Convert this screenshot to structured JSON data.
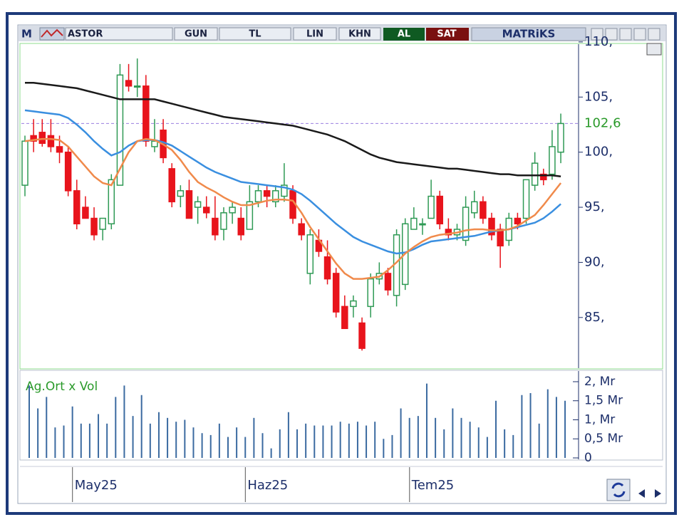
{
  "toolbar": {
    "logo": "M",
    "symbol": "ASTOR",
    "buttons": [
      "GUN",
      "TL",
      "LIN",
      "KHN"
    ],
    "buy": "AL",
    "sell": "SAT",
    "brand": "MATRiKS"
  },
  "chart_data": {
    "type": "candlestick",
    "categories": [
      null,
      null,
      null,
      null,
      null,
      null,
      "May25",
      null,
      null,
      null,
      null,
      null,
      null,
      null,
      null,
      null,
      null,
      null,
      null,
      null,
      null,
      null,
      null,
      null,
      null,
      null,
      "Haz25",
      null,
      null,
      null,
      null,
      null,
      null,
      null,
      null,
      null,
      null,
      null,
      null,
      null,
      null,
      null,
      null,
      null,
      null,
      "Tem25",
      null,
      null,
      null,
      null,
      null,
      null,
      null,
      null,
      null,
      null,
      null,
      null,
      null,
      null,
      null,
      null,
      null
    ],
    "open": [
      97,
      101.5,
      101.8,
      101.5,
      100.5,
      100,
      96.5,
      95,
      94,
      93,
      93.5,
      97,
      106.5,
      106,
      106,
      100.5,
      102,
      98.5,
      96,
      96.5,
      95,
      95,
      94,
      93,
      94.5,
      94,
      93,
      95.5,
      96.5,
      95.5,
      96,
      96.5,
      93.5,
      89,
      92,
      90.5,
      89,
      86,
      86,
      84.5,
      86,
      88.5,
      89,
      87,
      88,
      93,
      93.5,
      94,
      96,
      93,
      92.5,
      92,
      94.5,
      95.5,
      94,
      93,
      92,
      94,
      94,
      97,
      98,
      98,
      100
    ],
    "high": [
      101.5,
      103,
      103,
      103,
      101.5,
      100.5,
      97.5,
      96,
      95,
      94,
      98,
      108,
      108,
      108.5,
      107,
      103,
      103,
      99,
      97,
      97.5,
      96,
      96,
      96,
      95,
      95.5,
      95,
      97,
      97,
      97,
      97,
      99,
      97,
      94,
      93,
      93,
      92,
      89.5,
      87,
      87,
      85,
      89,
      90,
      89.5,
      93,
      94,
      95,
      94,
      97.5,
      96.5,
      94,
      93.5,
      96,
      96.5,
      96,
      94.5,
      93.5,
      94.5,
      94.5,
      97.5,
      100,
      98.5,
      102,
      103.5
    ],
    "low": [
      96,
      100,
      100.5,
      100,
      99,
      96,
      93,
      94,
      92,
      92,
      93,
      97,
      105.5,
      105,
      100.5,
      100,
      99,
      95,
      95,
      94,
      93.5,
      94,
      92,
      92,
      93.5,
      92,
      93,
      95,
      95,
      95,
      95.5,
      93.5,
      92,
      88,
      90.5,
      88,
      85,
      84,
      85,
      82,
      85,
      88,
      87,
      86,
      87.5,
      93,
      92.5,
      94,
      93,
      92,
      92,
      91.5,
      94,
      93.5,
      92,
      89.5,
      91.5,
      93,
      93.5,
      96.5,
      97,
      97.5,
      99
    ],
    "close": [
      101,
      101,
      100.8,
      100.5,
      100,
      96.5,
      93.5,
      94,
      92.5,
      94,
      97.5,
      107,
      106,
      106,
      101,
      101,
      99.5,
      95.5,
      96.5,
      94,
      95.5,
      94.5,
      92.5,
      94.5,
      95,
      92.5,
      95.5,
      96.5,
      96,
      96.5,
      97,
      94,
      92.5,
      92.5,
      91,
      88.5,
      85.5,
      84,
      86.5,
      82.2,
      88.5,
      89,
      87.5,
      92.5,
      93.5,
      94,
      93.5,
      96,
      93.5,
      92.5,
      93,
      95,
      95.5,
      94,
      92.5,
      91.5,
      94,
      93.5,
      97.5,
      99,
      97.5,
      100.5,
      102.6
    ],
    "up_color": "#2f9a55",
    "down_color": "#e8141c",
    "series": [
      {
        "color": "#1a1a1a",
        "values": [
          106.3,
          106.3,
          106.2,
          106.1,
          106.0,
          105.9,
          105.8,
          105.6,
          105.4,
          105.2,
          105.0,
          104.8,
          104.8,
          104.8,
          104.8,
          104.8,
          104.6,
          104.4,
          104.2,
          104.0,
          103.8,
          103.6,
          103.4,
          103.2,
          103.1,
          103.0,
          102.9,
          102.8,
          102.7,
          102.6,
          102.5,
          102.4,
          102.2,
          102.0,
          101.8,
          101.6,
          101.3,
          101.0,
          100.6,
          100.2,
          99.8,
          99.5,
          99.3,
          99.1,
          99.0,
          98.9,
          98.8,
          98.7,
          98.6,
          98.5,
          98.5,
          98.4,
          98.3,
          98.2,
          98.1,
          98.0,
          98.0,
          97.9,
          97.9,
          97.9,
          97.9,
          97.9,
          97.8
        ]
      },
      {
        "color": "#3a8fe0",
        "values": [
          103.8,
          103.7,
          103.6,
          103.5,
          103.4,
          103.1,
          102.5,
          101.8,
          101.0,
          100.3,
          99.7,
          100.0,
          100.6,
          101.0,
          101.1,
          101.1,
          100.9,
          100.6,
          100.1,
          99.6,
          99.1,
          98.6,
          98.2,
          97.9,
          97.6,
          97.3,
          97.2,
          97.1,
          97.0,
          96.9,
          96.8,
          96.6,
          96.2,
          95.6,
          94.9,
          94.2,
          93.5,
          92.9,
          92.3,
          91.9,
          91.6,
          91.3,
          91.0,
          90.8,
          90.9,
          91.2,
          91.6,
          91.9,
          92.0,
          92.1,
          92.2,
          92.3,
          92.4,
          92.6,
          92.8,
          92.9,
          93.0,
          93.2,
          93.4,
          93.6,
          94.0,
          94.6,
          95.3
        ]
      },
      {
        "color": "#f08a4b",
        "values": [
          101.0,
          101.1,
          101.2,
          101.2,
          101.1,
          100.5,
          99.6,
          98.7,
          97.8,
          97.2,
          97.0,
          98.5,
          100.0,
          101.0,
          101.2,
          101.1,
          100.7,
          100.2,
          99.3,
          98.2,
          97.3,
          96.8,
          96.4,
          95.9,
          95.5,
          95.2,
          95.2,
          95.4,
          95.6,
          95.7,
          95.7,
          95.6,
          94.5,
          93.2,
          92.1,
          91.0,
          89.9,
          89.0,
          88.5,
          88.5,
          88.6,
          88.7,
          89.3,
          90.0,
          90.8,
          91.4,
          91.9,
          92.3,
          92.5,
          92.6,
          92.7,
          92.9,
          93.0,
          93.0,
          92.9,
          92.9,
          93.0,
          93.3,
          93.8,
          94.3,
          95.2,
          96.2,
          97.2
        ]
      }
    ],
    "ylim": [
      80.4,
      109.8
    ],
    "yticks": [
      {
        "value": 85,
        "label": "85,"
      },
      {
        "value": 90,
        "label": "90,"
      },
      {
        "value": 95,
        "label": "95,"
      },
      {
        "value": 100,
        "label": "100,"
      },
      {
        "value": 105,
        "label": "105,"
      },
      {
        "value": 110,
        "label": "110,"
      }
    ],
    "last_price": {
      "value": 102.6,
      "label": "102,6"
    },
    "volume": {
      "label": "Ag.Ort x Vol",
      "color": "#3b6aa0",
      "values": [
        1.9,
        1.3,
        1.6,
        0.8,
        0.85,
        1.35,
        0.9,
        0.9,
        1.15,
        0.9,
        1.6,
        1.9,
        1.1,
        1.65,
        0.9,
        1.2,
        1.05,
        0.95,
        1.0,
        0.8,
        0.65,
        0.6,
        0.9,
        0.55,
        0.8,
        0.55,
        1.05,
        0.65,
        0.25,
        0.75,
        1.2,
        0.75,
        0.9,
        0.85,
        0.85,
        0.85,
        0.95,
        0.9,
        0.95,
        0.85,
        0.95,
        0.5,
        0.6,
        1.3,
        1.05,
        1.1,
        1.95,
        1.05,
        0.75,
        1.3,
        1.05,
        0.95,
        0.8,
        0.55,
        1.5,
        0.75,
        0.6,
        1.65,
        1.7,
        0.9,
        1.8,
        1.6,
        1.5
      ],
      "ylim": [
        0,
        2.28
      ],
      "yticks": [
        {
          "value": 0,
          "label": "0"
        },
        {
          "value": 0.5,
          "label": "0,5 Mr"
        },
        {
          "value": 1,
          "label": "1, Mr"
        },
        {
          "value": 1.5,
          "label": "1,5 Mr"
        },
        {
          "value": 2,
          "label": "2, Mr"
        }
      ]
    }
  }
}
